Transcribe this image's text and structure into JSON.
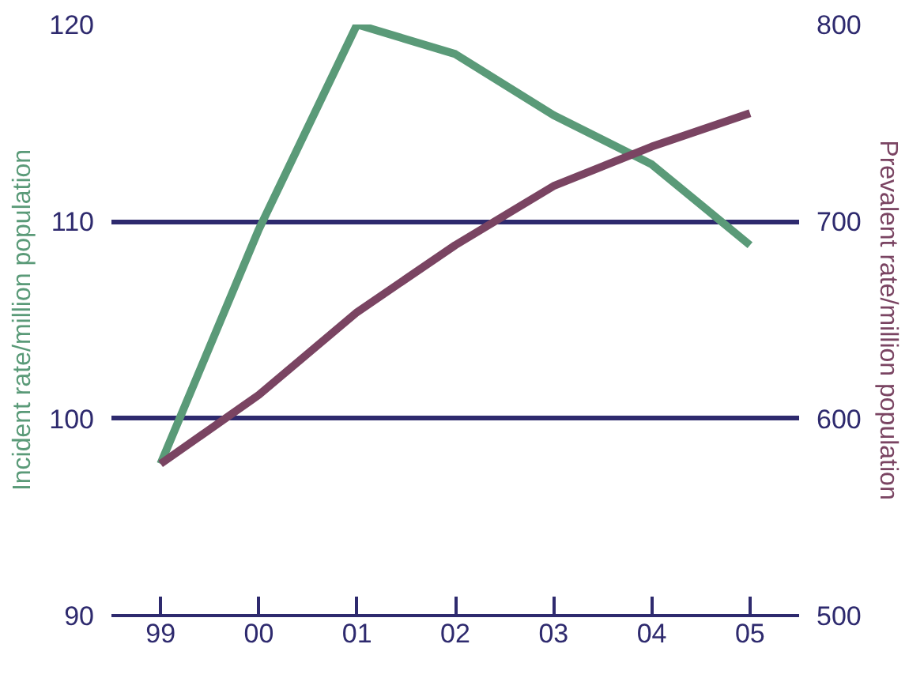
{
  "chart_data": {
    "type": "line",
    "ylabel": "Incident rate/million population",
    "y2label": "Prevalent rate/million population",
    "categories": [
      "99",
      "00",
      "01",
      "02",
      "03",
      "04",
      "05"
    ],
    "series": [
      {
        "color": "#5a9a78",
        "values": [
          97.7,
          109.6,
          120,
          118.5,
          115.4,
          112.9,
          108.8
        ]
      },
      {
        "color": "#7a4462",
        "axis": "y2",
        "values": [
          577,
          612,
          654,
          688,
          718,
          738,
          755
        ]
      }
    ],
    "ylim": [
      90,
      120
    ],
    "yticks": [
      90,
      100,
      110,
      120
    ],
    "y2lim": [
      500,
      800
    ],
    "y2ticks": [
      500,
      600,
      700,
      800
    ],
    "grid": "y",
    "marker": "none",
    "line_style": "solid"
  }
}
